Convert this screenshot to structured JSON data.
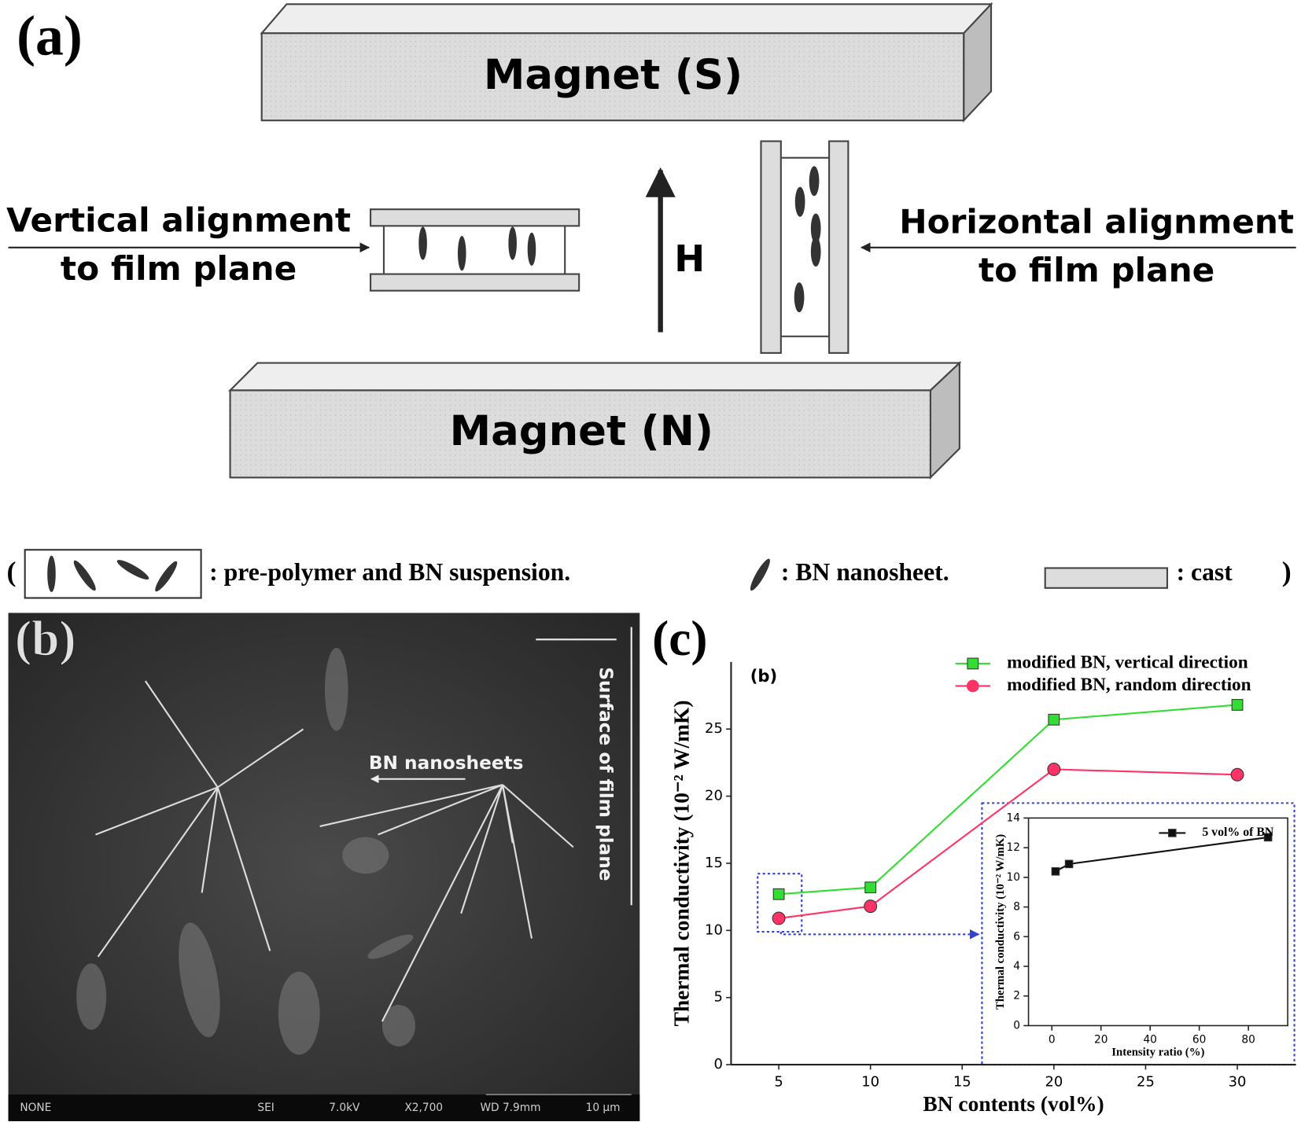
{
  "panel_a": {
    "label": "(a)",
    "magnet_top": "Magnet (S)",
    "magnet_bottom": "Magnet (N)",
    "left_label": [
      "Vertical alignment",
      "to film plane"
    ],
    "right_label": [
      "Horizontal alignment",
      "to film plane"
    ],
    "field": "H"
  },
  "key": {
    "open": "(",
    "suspension": ": pre-polymer and BN suspension.",
    "nanosheet": ": BN nanosheet.",
    "cast": ": cast",
    "close": ")"
  },
  "panel_b": {
    "label": "(b)",
    "annotation": "BN nanosheets",
    "surface": "Surface of film plane",
    "footer": [
      "NONE",
      "SEI",
      "7.0kV",
      "X2,700",
      "WD 7.9mm",
      "10 μm"
    ]
  },
  "chart_data": [
    {
      "type": "line",
      "panel_label": "(c)",
      "annotation": "(b)",
      "xlabel": "BN contents (vol%)",
      "ylabel": "Thermal conductivity (10⁻² W/mK)",
      "x": [
        5,
        10,
        20,
        30
      ],
      "series": [
        {
          "name": "modified BN, vertical direction",
          "color": "#33dd33",
          "marker": "square",
          "values": [
            12.7,
            13.2,
            25.7,
            26.8
          ]
        },
        {
          "name": "modified BN, random direction",
          "color": "#ff3366",
          "marker": "circle",
          "values": [
            10.9,
            11.8,
            22.0,
            21.6
          ]
        }
      ],
      "xlim": [
        2.4,
        33.2
      ],
      "ylim": [
        0,
        30
      ],
      "xticks": [
        5,
        10,
        15,
        20,
        25,
        30
      ],
      "yticks": [
        0,
        5,
        10,
        15,
        20,
        25
      ],
      "legend": "upper right"
    },
    {
      "type": "line",
      "xlabel": "Intensity ratio (%)",
      "ylabel": "Thermal conductivity (10⁻² W/mK)",
      "x": [
        1.5,
        7,
        88
      ],
      "series": [
        {
          "name": "5 vol% of BN",
          "color": "#111111",
          "marker": "square",
          "values": [
            10.4,
            10.9,
            12.7
          ]
        }
      ],
      "xlim": [
        -9.5,
        96
      ],
      "ylim": [
        0,
        14
      ],
      "xticks": [
        0,
        20,
        40,
        60,
        80
      ],
      "yticks": [
        0,
        2,
        4,
        6,
        8,
        10,
        12,
        14
      ],
      "legend": "upper right"
    }
  ]
}
